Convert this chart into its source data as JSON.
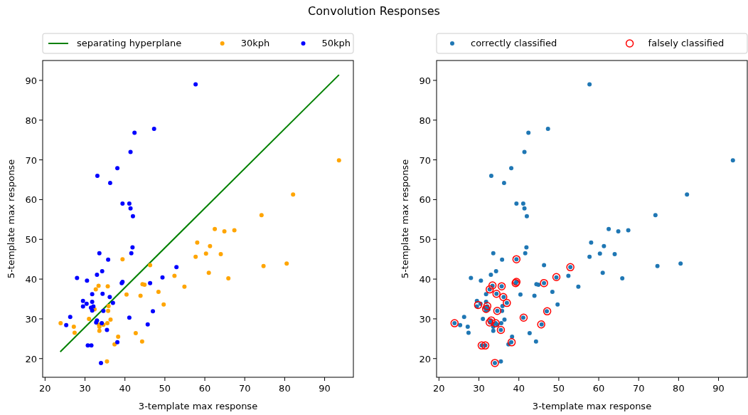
{
  "chart_data": [
    {
      "type": "scatter",
      "title": "Convolution Responses",
      "xlabel": "3-template max response",
      "ylabel": "5-template max response",
      "xlim": [
        19.4,
        97.2
      ],
      "ylim": [
        15.3,
        95.0
      ],
      "xticks": [
        20,
        30,
        40,
        50,
        60,
        70,
        80,
        90
      ],
      "yticks": [
        20,
        30,
        40,
        50,
        60,
        70,
        80,
        90
      ],
      "legend": "top",
      "grid": false,
      "series": [
        {
          "name": "separating hyperplane",
          "type": "line",
          "color": "#008000",
          "x": [
            23.8,
            93.6
          ],
          "values": [
            21.7,
            91.4
          ]
        },
        {
          "name": "30kph",
          "color": "#ffa500",
          "x": [
            93.6,
            82.1,
            74.2,
            62.5,
            64.9,
            67.4,
            58.1,
            61.3,
            57.7,
            60.3,
            64.0,
            74.7,
            80.5,
            61.0,
            65.9,
            52.4,
            54.9,
            39.4,
            46.3,
            44.4,
            44.9,
            48.4,
            40.4,
            43.9,
            49.7,
            33.4,
            35.7,
            32.7,
            35.9,
            32.4,
            35.8,
            31.0,
            36.4,
            35.6,
            34.6,
            33.5,
            33.6,
            33.6,
            23.9,
            27.2,
            27.4,
            38.3,
            37.4,
            42.7,
            44.3,
            35.5
          ],
          "values": [
            69.9,
            61.3,
            56.1,
            52.6,
            52.0,
            52.3,
            49.2,
            48.3,
            45.6,
            46.4,
            46.3,
            43.3,
            43.9,
            41.6,
            40.2,
            40.8,
            38.1,
            45.0,
            43.5,
            38.7,
            38.6,
            36.8,
            36.1,
            35.8,
            33.6,
            38.3,
            38.2,
            37.4,
            33.2,
            32.4,
            32.0,
            30.0,
            29.8,
            28.9,
            28.5,
            28.5,
            28.0,
            27.0,
            28.9,
            28.0,
            26.5,
            25.5,
            23.6,
            26.4,
            24.3,
            19.3
          ]
        },
        {
          "name": "50kph",
          "color": "#0000ff",
          "x": [
            57.7,
            47.3,
            42.4,
            41.4,
            38.1,
            33.1,
            36.3,
            39.4,
            41.1,
            41.4,
            42.0,
            41.9,
            41.6,
            33.6,
            35.8,
            34.3,
            33.0,
            28.0,
            30.5,
            39.2,
            39.4,
            46.3,
            49.4,
            52.9,
            31.8,
            34.4,
            36.2,
            37.0,
            29.5,
            31.8,
            30.4,
            29.5,
            31.5,
            32.1,
            31.8,
            34.6,
            47.0,
            26.3,
            25.3,
            33.0,
            32.8,
            34.2,
            35.5,
            41.1,
            45.7,
            38.1,
            30.7,
            31.6,
            34.0
          ],
          "values": [
            89.0,
            77.8,
            76.8,
            72.0,
            67.9,
            66.0,
            64.2,
            59.0,
            59.0,
            57.8,
            55.8,
            48.0,
            46.5,
            46.5,
            44.9,
            42.0,
            41.1,
            40.3,
            39.6,
            39.0,
            39.3,
            39.0,
            40.4,
            43.0,
            36.2,
            36.3,
            35.5,
            34.0,
            34.5,
            34.3,
            33.8,
            33.1,
            32.8,
            33.1,
            32.1,
            32.0,
            31.9,
            30.5,
            28.4,
            29.6,
            29.1,
            28.9,
            27.2,
            30.3,
            28.6,
            24.1,
            23.3,
            23.3,
            18.9
          ]
        }
      ]
    },
    {
      "type": "scatter",
      "xlabel": "3-template max response",
      "ylabel": "5-template max response",
      "xlim": [
        19.4,
        97.2
      ],
      "ylim": [
        15.3,
        95.0
      ],
      "xticks": [
        20,
        30,
        40,
        50,
        60,
        70,
        80,
        90
      ],
      "yticks": [
        20,
        30,
        40,
        50,
        60,
        70,
        80,
        90
      ],
      "legend": "top",
      "grid": false,
      "series": [
        {
          "name": "correctly classified",
          "color": "#1f77b4",
          "x": [
            93.6,
            82.1,
            74.2,
            62.5,
            64.9,
            67.4,
            58.1,
            61.3,
            57.7,
            60.3,
            64.0,
            74.7,
            80.5,
            61.0,
            65.9,
            52.4,
            54.9,
            39.4,
            46.3,
            44.4,
            44.9,
            48.4,
            40.4,
            43.9,
            49.7,
            33.4,
            35.7,
            32.7,
            35.9,
            32.4,
            35.8,
            31.0,
            36.4,
            35.6,
            34.6,
            33.5,
            33.6,
            33.6,
            23.9,
            27.2,
            27.4,
            38.3,
            37.4,
            42.7,
            44.3,
            35.5,
            57.7,
            47.3,
            42.4,
            41.4,
            38.1,
            33.1,
            36.3,
            39.4,
            41.1,
            41.4,
            42.0,
            41.9,
            41.6,
            33.6,
            35.8,
            34.3,
            33.0,
            28.0,
            30.5,
            39.2,
            39.4,
            46.3,
            49.4,
            52.9,
            31.8,
            34.4,
            36.2,
            37.0,
            29.5,
            31.8,
            30.4,
            29.5,
            31.5,
            32.1,
            31.8,
            34.6,
            47.0,
            26.3,
            25.3,
            33.0,
            32.8,
            34.2,
            35.5,
            41.1,
            45.7,
            38.1,
            30.7,
            31.6,
            34.0
          ],
          "values": [
            69.9,
            61.3,
            56.1,
            52.6,
            52.0,
            52.3,
            49.2,
            48.3,
            45.6,
            46.4,
            46.3,
            43.3,
            43.9,
            41.6,
            40.2,
            40.8,
            38.1,
            45.0,
            43.5,
            38.7,
            38.6,
            36.8,
            36.1,
            35.8,
            33.6,
            38.3,
            38.2,
            37.4,
            33.2,
            32.4,
            32.0,
            30.0,
            29.8,
            28.9,
            28.5,
            28.5,
            28.0,
            27.0,
            28.9,
            28.0,
            26.5,
            25.5,
            23.6,
            26.4,
            24.3,
            19.3,
            89.0,
            77.8,
            76.8,
            72.0,
            67.9,
            66.0,
            64.2,
            59.0,
            59.0,
            57.8,
            55.8,
            48.0,
            46.5,
            46.5,
            44.9,
            42.0,
            41.1,
            40.3,
            39.6,
            39.0,
            39.3,
            39.0,
            40.4,
            43.0,
            36.2,
            36.3,
            35.5,
            34.0,
            34.5,
            34.3,
            33.8,
            33.1,
            32.8,
            33.1,
            32.1,
            32.0,
            31.9,
            30.5,
            28.4,
            29.6,
            29.1,
            28.9,
            27.2,
            30.3,
            28.6,
            24.1,
            23.3,
            23.3,
            18.9
          ]
        },
        {
          "name": "falsely classified",
          "color": "#ff0000",
          "marker": "circle",
          "x": [
            39.4,
            52.9,
            49.4,
            46.3,
            39.2,
            39.4,
            33.4,
            35.7,
            32.7,
            34.4,
            36.1,
            37.0,
            29.8,
            32.1,
            31.8,
            34.6,
            47.1,
            41.2,
            33.1,
            32.7,
            34.2,
            35.5,
            45.6,
            23.9,
            38.2,
            30.7,
            31.6,
            34.0
          ],
          "values": [
            45.0,
            43.0,
            40.5,
            39.0,
            39.0,
            39.3,
            38.4,
            38.2,
            37.4,
            36.3,
            35.5,
            34.0,
            33.5,
            33.2,
            32.5,
            32.0,
            31.9,
            30.3,
            29.6,
            29.1,
            28.9,
            27.2,
            28.6,
            28.9,
            24.1,
            23.3,
            23.3,
            18.9
          ]
        }
      ]
    }
  ]
}
